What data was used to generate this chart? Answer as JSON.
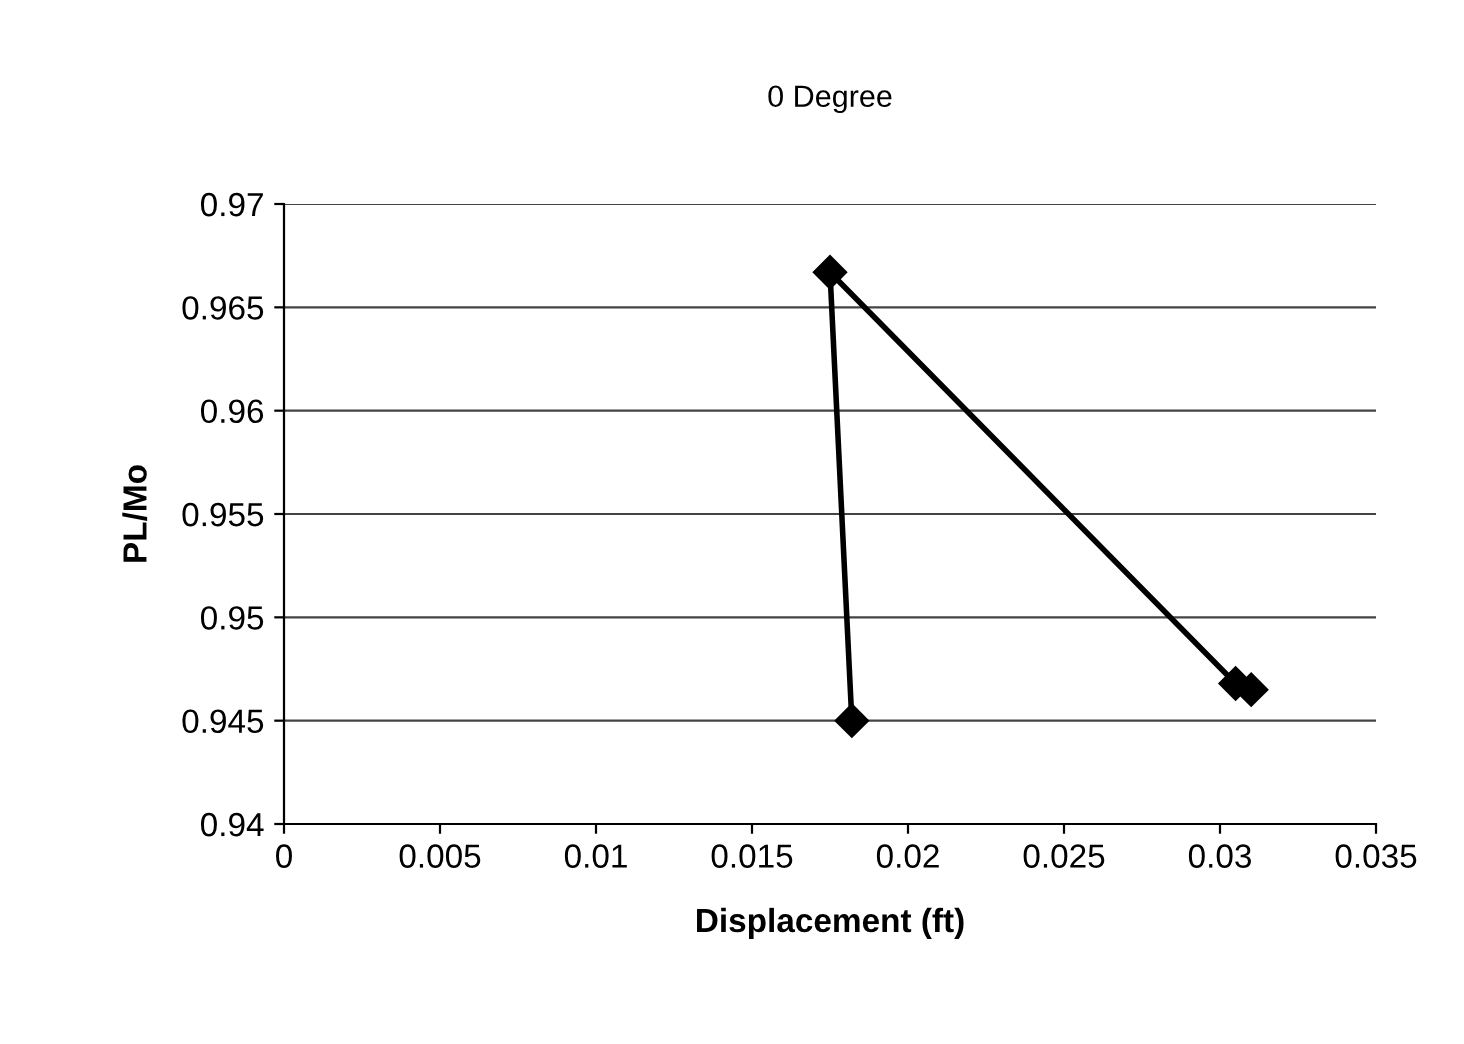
{
  "chart_data": {
    "type": "line",
    "title": "0 Degree",
    "xlabel": "Displacement (ft)",
    "ylabel": "PL/Mo",
    "series": [
      {
        "color": "#000000",
        "x": [
          0.0182,
          0.0175,
          0.0305,
          0.031
        ],
        "values": [
          0.945,
          0.9667,
          0.9468,
          0.9465
        ]
      }
    ],
    "xlim": [
      0,
      0.035
    ],
    "xticks": [
      0,
      0.005,
      0.01,
      0.015,
      0.02,
      0.025,
      0.03,
      0.035
    ],
    "ylim": [
      0.94,
      0.97
    ],
    "yticks": [
      0.94,
      0.945,
      0.95,
      0.955,
      0.96,
      0.965,
      0.97
    ],
    "grid": "y",
    "marker": "diamond",
    "line_style": "solid",
    "legend": false
  }
}
